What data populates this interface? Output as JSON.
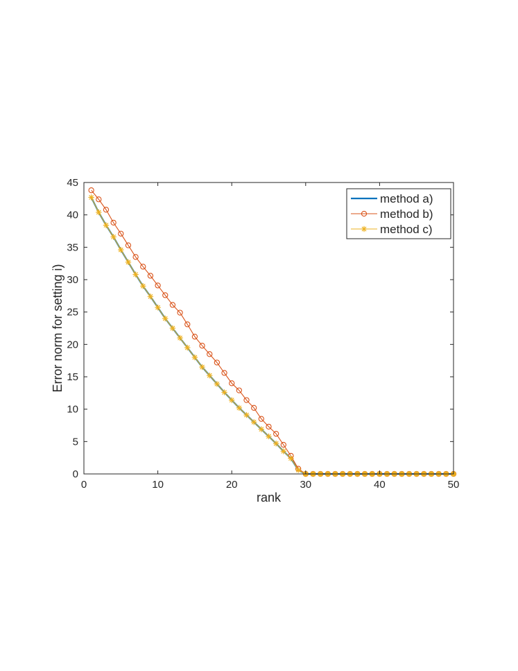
{
  "chart_data": {
    "type": "line",
    "xlabel": "rank",
    "ylabel": "Error norm for setting i)",
    "xlim": [
      0,
      50
    ],
    "ylim": [
      0,
      45
    ],
    "xticks": [
      0,
      10,
      20,
      30,
      40,
      50
    ],
    "yticks": [
      0,
      5,
      10,
      15,
      20,
      25,
      30,
      35,
      40,
      45
    ],
    "grid": false,
    "legend_position": "top-right",
    "x": [
      1,
      2,
      3,
      4,
      5,
      6,
      7,
      8,
      9,
      10,
      11,
      12,
      13,
      14,
      15,
      16,
      17,
      18,
      19,
      20,
      21,
      22,
      23,
      24,
      25,
      26,
      27,
      28,
      29,
      30,
      31,
      32,
      33,
      34,
      35,
      36,
      37,
      38,
      39,
      40,
      41,
      42,
      43,
      44,
      45,
      46,
      47,
      48,
      49,
      50
    ],
    "series": [
      {
        "name": "method a)",
        "color": "#0072BD",
        "marker": "none",
        "values": [
          42.7,
          40.4,
          38.4,
          36.6,
          34.6,
          32.7,
          30.8,
          29.0,
          27.4,
          25.7,
          24.0,
          22.5,
          21.0,
          19.5,
          18.0,
          16.5,
          15.2,
          13.9,
          12.6,
          11.4,
          10.2,
          9.1,
          8.0,
          6.9,
          5.8,
          4.7,
          3.5,
          2.4,
          0.6,
          0,
          0,
          0,
          0,
          0,
          0,
          0,
          0,
          0,
          0,
          0,
          0,
          0,
          0,
          0,
          0,
          0,
          0,
          0,
          0,
          0
        ]
      },
      {
        "name": "method b)",
        "color": "#D95319",
        "marker": "circle",
        "values": [
          43.8,
          42.4,
          40.8,
          38.8,
          37.1,
          35.3,
          33.5,
          32.0,
          30.6,
          29.1,
          27.6,
          26.1,
          24.9,
          23.1,
          21.2,
          19.8,
          18.5,
          17.2,
          15.6,
          14.0,
          12.9,
          11.4,
          10.2,
          8.5,
          7.3,
          6.2,
          4.5,
          2.8,
          0.8,
          0,
          0,
          0,
          0,
          0,
          0,
          0,
          0,
          0,
          0,
          0,
          0,
          0,
          0,
          0,
          0,
          0,
          0,
          0,
          0,
          0
        ]
      },
      {
        "name": "method c)",
        "color": "#EDB120",
        "marker": "asterisk",
        "values": [
          42.7,
          40.4,
          38.4,
          36.6,
          34.6,
          32.7,
          30.8,
          29.0,
          27.4,
          25.7,
          24.0,
          22.5,
          21.0,
          19.5,
          18.0,
          16.5,
          15.2,
          13.9,
          12.6,
          11.4,
          10.2,
          9.1,
          8.0,
          6.9,
          5.8,
          4.7,
          3.5,
          2.4,
          0.6,
          0,
          0,
          0,
          0,
          0,
          0,
          0,
          0,
          0,
          0,
          0,
          0,
          0,
          0,
          0,
          0,
          0,
          0,
          0,
          0,
          0
        ]
      }
    ]
  }
}
